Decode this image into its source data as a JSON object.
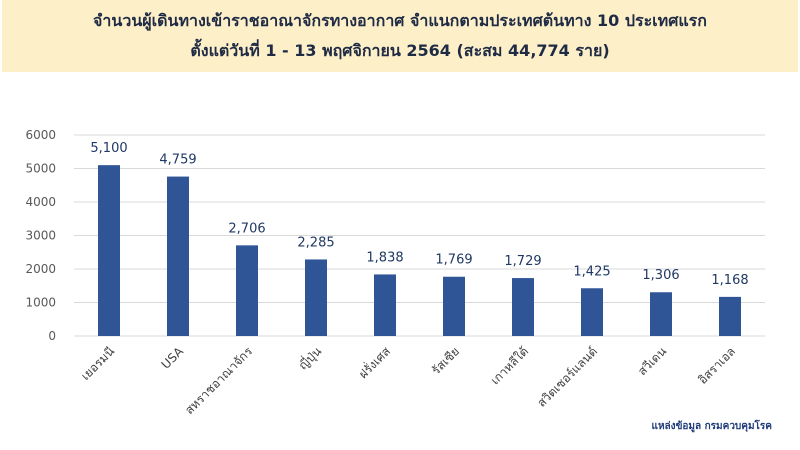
{
  "chart_data": {
    "type": "bar",
    "title": [
      "จำนวนผู้เดินทางเข้าราชอาณาจักรทางอากาศ จำแนกตามประเทศต้นทาง 10 ประเทศแรก",
      "ตั้งแต่วันที่  1 - 13  พฤศจิกายน 2564 (สะสม 44,774 ราย)"
    ],
    "categories": [
      "เยอรมนี",
      "USA",
      "สหราชอาณาจักร",
      "ญี่ปุ่น",
      "ฝรั่งเศส",
      "รัสเซีย",
      "เกาหลีใต้",
      "สวิตเซอร์แลนด์",
      "สวีเดน",
      "อิสราเอล"
    ],
    "values": [
      5100,
      4759,
      2706,
      2285,
      1838,
      1769,
      1729,
      1425,
      1306,
      1168
    ],
    "data_labels": [
      "5,100",
      "4,759",
      "2,706",
      "2,285",
      "1,838",
      "1,769",
      "1,729",
      "1,425",
      "1,306",
      "1,168"
    ],
    "ylim": [
      0,
      6000
    ],
    "yticks": [
      "0",
      "1000",
      "2000",
      "3000",
      "4000",
      "5000",
      "6000"
    ],
    "grid": true,
    "legend": "none",
    "bar_color": "#2f5597",
    "label_color": "#1f3864",
    "source": "แหล่งข้อมูล กรมควบคุมโรค"
  }
}
